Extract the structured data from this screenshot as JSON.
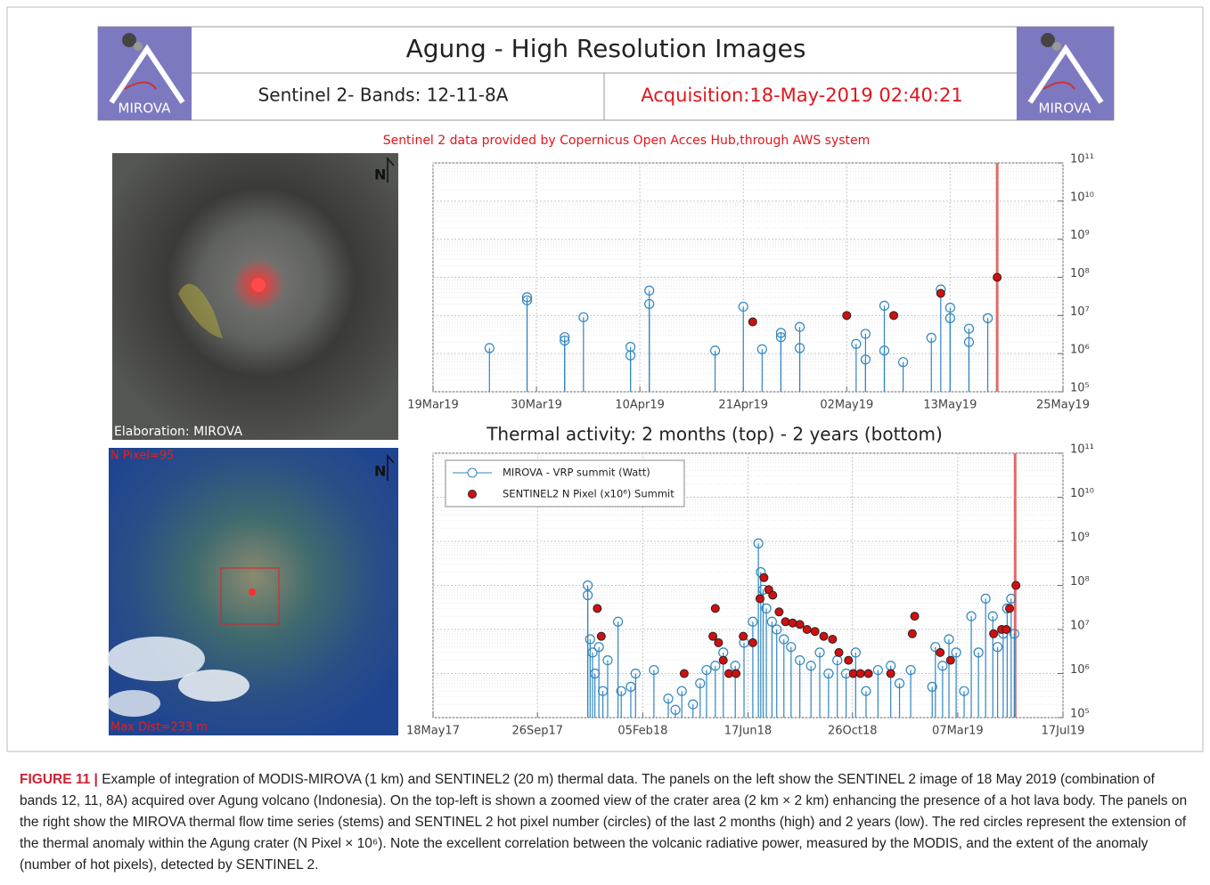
{
  "header": {
    "title": "Agung - High Resolution Images",
    "subtitle": "Sentinel 2- Bands: 12-11-8A",
    "acquisition": "Acquisition:18-May-2019 02:40:21",
    "logo_text": "MIROVA",
    "credit": "Sentinel 2 data provided by Copernicus Open Acces Hub,through AWS system"
  },
  "images": {
    "top_label": "Elaboration: MIROVA",
    "north": "N",
    "bottom_pixels": "N Pixel=95",
    "bottom_distance": "Max Dist=233 m"
  },
  "thermal_title": "Thermal activity: 2 months (top) - 2 years (bottom)",
  "chart_data": [
    {
      "type": "stem",
      "log_y": true,
      "y_axis_side": "right",
      "grid": true,
      "xlim": [
        "2019-03-19",
        "2019-05-25"
      ],
      "xticks": [
        {
          "value": "2019-03-19",
          "label": "19Mar19"
        },
        {
          "value": "2019-03-30",
          "label": "30Mar19"
        },
        {
          "value": "2019-04-10",
          "label": "10Apr19"
        },
        {
          "value": "2019-04-21",
          "label": "21Apr19"
        },
        {
          "value": "2019-05-02",
          "label": "02May19"
        },
        {
          "value": "2019-05-13",
          "label": "13May19"
        },
        {
          "value": "2019-05-25",
          "label": "25May19"
        }
      ],
      "ylim": [
        100000,
        100000000000
      ],
      "yticks": [
        {
          "value": 100000,
          "label": "10⁵"
        },
        {
          "value": 1000000,
          "label": "10⁶"
        },
        {
          "value": 10000000,
          "label": "10⁷"
        },
        {
          "value": 100000000,
          "label": "10⁸"
        },
        {
          "value": 1000000000,
          "label": "10⁹"
        },
        {
          "value": 10000000000,
          "label": "10¹⁰"
        },
        {
          "value": 100000000000,
          "label": "10¹¹"
        }
      ],
      "marker_line": {
        "x": "2019-05-18",
        "color": "#e06a6a"
      },
      "series": [
        {
          "kind": "stem",
          "color": "#2f86c0",
          "x": [
            "2019-03-25",
            "2019-03-29",
            "2019-03-29",
            "2019-04-02",
            "2019-04-02",
            "2019-04-04",
            "2019-04-09",
            "2019-04-09",
            "2019-04-11",
            "2019-04-11",
            "2019-04-18",
            "2019-04-21",
            "2019-04-23",
            "2019-04-25",
            "2019-04-25",
            "2019-04-27",
            "2019-04-27",
            "2019-05-03",
            "2019-05-04",
            "2019-05-04",
            "2019-05-06",
            "2019-05-06",
            "2019-05-08",
            "2019-05-11",
            "2019-05-12",
            "2019-05-13",
            "2019-05-13",
            "2019-05-15",
            "2019-05-15",
            "2019-05-17"
          ],
          "values": [
            1400000,
            30000000,
            25000000,
            2700000,
            2200000,
            9000000,
            1500000,
            900000,
            45000000,
            20000000,
            1200000,
            17000000,
            1300000,
            3500000,
            2700000,
            5000000,
            1400000,
            1800000,
            3300000,
            700000,
            1200000,
            18000000,
            600000,
            2600000,
            48000000,
            16000000,
            8500000,
            4500000,
            2000000,
            8500000
          ]
        },
        {
          "kind": "dot",
          "color": "#d01010",
          "x": [
            "2019-04-22",
            "2019-05-02",
            "2019-05-07",
            "2019-05-12",
            "2019-05-18"
          ],
          "values": [
            6800000,
            10000000,
            10000000,
            38000000,
            100000000
          ]
        }
      ]
    },
    {
      "type": "stem",
      "log_y": true,
      "y_axis_side": "right",
      "grid": true,
      "legend": "upper left",
      "xlim": [
        "2017-05-18",
        "2019-07-17"
      ],
      "xticks": [
        {
          "value": "2017-05-18",
          "label": "18May17"
        },
        {
          "value": "2017-09-26",
          "label": "26Sep17"
        },
        {
          "value": "2018-02-05",
          "label": "05Feb18"
        },
        {
          "value": "2018-06-17",
          "label": "17Jun18"
        },
        {
          "value": "2018-10-26",
          "label": "26Oct18"
        },
        {
          "value": "2019-03-07",
          "label": "07Mar19"
        },
        {
          "value": "2019-07-17",
          "label": "17Jul19"
        }
      ],
      "ylim": [
        100000,
        100000000000
      ],
      "yticks": [
        {
          "value": 100000,
          "label": "10⁵"
        },
        {
          "value": 1000000,
          "label": "10⁶"
        },
        {
          "value": 10000000,
          "label": "10⁷"
        },
        {
          "value": 100000000,
          "label": "10⁸"
        },
        {
          "value": 1000000000,
          "label": "10⁹"
        },
        {
          "value": 10000000000,
          "label": "10¹⁰"
        },
        {
          "value": 100000000000,
          "label": "10¹¹"
        }
      ],
      "marker_line": {
        "x": "2019-05-18",
        "color": "#e06a6a"
      },
      "series": [
        {
          "kind": "stem",
          "name": "MIROVA - VRP summit (Watt)",
          "color": "#2f86c0",
          "x": [
            "2017-11-28",
            "2017-11-28",
            "2017-12-01",
            "2017-12-04",
            "2017-12-07",
            "2017-12-12",
            "2017-12-17",
            "2017-12-23",
            "2018-01-05",
            "2018-01-09",
            "2018-01-21",
            "2018-01-27",
            "2018-02-19",
            "2018-03-09",
            "2018-03-18",
            "2018-03-26",
            "2018-04-09",
            "2018-04-18",
            "2018-04-26",
            "2018-05-07",
            "2018-05-17",
            "2018-06-01",
            "2018-06-12",
            "2018-06-23",
            "2018-06-30",
            "2018-07-03",
            "2018-07-06",
            "2018-07-10",
            "2018-07-17",
            "2018-07-23",
            "2018-08-01",
            "2018-08-10",
            "2018-08-21",
            "2018-09-04",
            "2018-09-15",
            "2018-09-26",
            "2018-10-07",
            "2018-10-18",
            "2018-10-30",
            "2018-11-12",
            "2018-11-27",
            "2018-12-13",
            "2018-12-24",
            "2019-01-07",
            "2019-02-03",
            "2019-02-07",
            "2019-02-16",
            "2019-02-24",
            "2019-03-05",
            "2019-03-15",
            "2019-03-24",
            "2019-04-02",
            "2019-04-11",
            "2019-04-20",
            "2019-04-26",
            "2019-05-03",
            "2019-05-08",
            "2019-05-13",
            "2019-05-17"
          ],
          "values": [
            60000000,
            100000000,
            6000000,
            3000000,
            1000000,
            4000000,
            400000,
            2000000,
            15000000,
            400000,
            500000,
            1000000,
            1200000,
            270000,
            150000,
            400000,
            200000,
            600000,
            1200000,
            1500000,
            3000000,
            1500000,
            5000000,
            15000000,
            900000000,
            200000000,
            80000000,
            30000000,
            15000000,
            10000000,
            6000000,
            4000000,
            2000000,
            1500000,
            3000000,
            1000000,
            2000000,
            1000000,
            3000000,
            400000,
            1200000,
            1500000,
            600000,
            1200000,
            500000,
            4000000,
            1500000,
            6000000,
            3000000,
            400000,
            20000000,
            3000000,
            50000000,
            20000000,
            4000000,
            8000000,
            30000000,
            50000000,
            8000000
          ]
        },
        {
          "kind": "dot",
          "name": "SENTINEL2 N Pixel (x10⁶) Summit",
          "color": "#d01010",
          "x": [
            "2017-12-10",
            "2017-12-15",
            "2018-03-29",
            "2018-05-04",
            "2018-05-07",
            "2018-05-11",
            "2018-05-17",
            "2018-05-24",
            "2018-06-02",
            "2018-06-11",
            "2018-06-23",
            "2018-07-02",
            "2018-07-07",
            "2018-07-13",
            "2018-07-18",
            "2018-07-26",
            "2018-08-03",
            "2018-08-12",
            "2018-08-21",
            "2018-08-30",
            "2018-09-09",
            "2018-09-20",
            "2018-10-01",
            "2018-10-09",
            "2018-10-21",
            "2018-10-27",
            "2018-11-05",
            "2018-11-15",
            "2018-12-13",
            "2019-01-09",
            "2019-01-12",
            "2019-02-13",
            "2019-02-26",
            "2019-04-21",
            "2019-05-01",
            "2019-05-07",
            "2019-05-11",
            "2019-05-19"
          ],
          "values": [
            30000000,
            7000000,
            1000000,
            7000000,
            30000000,
            5000000,
            2000000,
            1000000,
            1000000,
            7000000,
            5000000,
            50000000,
            150000000,
            80000000,
            60000000,
            25000000,
            15000000,
            14000000,
            13000000,
            10000000,
            9000000,
            7000000,
            6000000,
            3000000,
            2000000,
            1000000,
            1000000,
            1000000,
            1000000,
            8000000,
            20000000,
            3000000,
            2000000,
            8000000,
            10000000,
            10000000,
            30000000,
            100000000
          ]
        }
      ]
    }
  ],
  "caption": {
    "label": "FIGURE 11 |",
    "text": "Example of integration of MODIS-MIROVA (1 km) and SENTINEL2 (20 m) thermal data. The panels on the left show the SENTINEL 2 image of 18 May 2019 (combination of bands 12, 11, 8A) acquired over Agung volcano (Indonesia). On the top-left is shown a zoomed view of the crater area (2 km × 2 km) enhancing the presence of a hot lava body. The panels on the right show the MIROVA thermal flow time series (stems) and SENTINEL 2 hot pixel number (circles) of the last 2 months (high) and 2 years (low). The red circles represent the extension of the thermal anomaly within the Agung crater (N Pixel × 10⁶). Note the excellent correlation between the volcanic radiative power, measured by the MODIS, and the extent of the anomaly (number of hot pixels), detected by SENTINEL 2."
  }
}
